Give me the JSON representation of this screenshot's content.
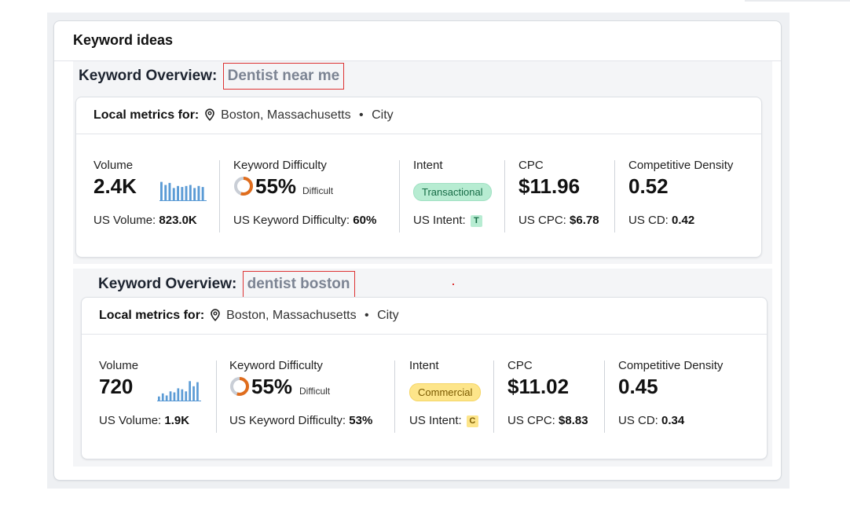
{
  "card": {
    "title": "Keyword ideas"
  },
  "sections": [
    {
      "overview_label": "Keyword Overview:",
      "keyword": "Dentist near me",
      "local_label": "Local metrics for:",
      "location": "Boston, Massachusetts",
      "location_type": "City",
      "volume": {
        "label": "Volume",
        "value": "2.4K",
        "sub_label": "US Volume:",
        "sub_value": "823.0K",
        "trend": [
          0.9,
          0.75,
          0.85,
          0.6,
          0.7,
          0.65,
          0.7,
          0.75,
          0.6,
          0.7,
          0.65
        ]
      },
      "kd": {
        "label": "Keyword Difficulty",
        "value": "55%",
        "word": "Difficult",
        "percent": 55,
        "sub_label": "US Keyword Difficulty:",
        "sub_value": "60%"
      },
      "intent": {
        "label": "Intent",
        "pill": "Transactional",
        "sub_label": "US Intent:",
        "badge": "T"
      },
      "cpc": {
        "label": "CPC",
        "value": "$11.96",
        "sub_label": "US CPC:",
        "sub_value": "$6.78"
      },
      "cd": {
        "label": "Competitive Density",
        "value": "0.52",
        "sub_label": "US CD:",
        "sub_value": "0.42"
      }
    },
    {
      "overview_label": "Keyword Overview:",
      "keyword": "dentist boston",
      "local_label": "Local metrics for:",
      "location": "Boston, Massachusetts",
      "location_type": "City",
      "volume": {
        "label": "Volume",
        "value": "720",
        "sub_label": "US Volume:",
        "sub_value": "1.9K",
        "trend": [
          0.2,
          0.35,
          0.25,
          0.45,
          0.4,
          0.6,
          0.55,
          0.45,
          0.95,
          0.7,
          0.9
        ]
      },
      "kd": {
        "label": "Keyword Difficulty",
        "value": "55%",
        "word": "Difficult",
        "percent": 55,
        "sub_label": "US Keyword Difficulty:",
        "sub_value": "53%"
      },
      "intent": {
        "label": "Intent",
        "pill": "Commercial",
        "sub_label": "US Intent:",
        "badge": "C"
      },
      "cpc": {
        "label": "CPC",
        "value": "$11.02",
        "sub_label": "US CPC:",
        "sub_value": "$8.83"
      },
      "cd": {
        "label": "Competitive Density",
        "value": "0.45",
        "sub_label": "US CD:",
        "sub_value": "0.34"
      }
    }
  ],
  "colors": {
    "spark": "#5b9bd5",
    "kd_ring": "#e06d1d",
    "kd_track": "#c9ced6",
    "transactional": "#b7ecd2",
    "commercial": "#fde58a"
  }
}
